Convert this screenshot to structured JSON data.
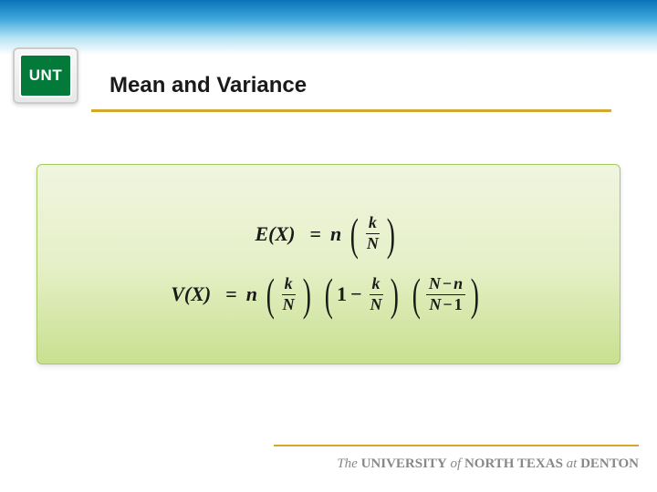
{
  "logo": {
    "text": "UNT"
  },
  "title": "Mean and Variance",
  "formulas": {
    "mean": {
      "lhs": "E(X)",
      "rhs_n": "n",
      "frac1_num": "k",
      "frac1_den": "N"
    },
    "variance": {
      "lhs": "V(X)",
      "rhs_n": "n",
      "frac1_num": "k",
      "frac1_den": "N",
      "term2_one": "1",
      "term2_minus": "−",
      "frac2_num": "k",
      "frac2_den": "N",
      "frac3_num_left": "N",
      "frac3_num_minus": "−",
      "frac3_num_right": "n",
      "frac3_den_left": "N",
      "frac3_den_minus": "−",
      "frac3_den_right": "1"
    }
  },
  "footer": {
    "the": "The",
    "university": "UNIVERSITY",
    "of": "of",
    "north_texas": "NORTH TEXAS",
    "at": "at",
    "denton": "DENTON"
  },
  "colors": {
    "accent": "#d4a82e",
    "logo_green": "#047a3a",
    "gradient_top": "#0a72b8",
    "box_border": "#a8c860"
  }
}
